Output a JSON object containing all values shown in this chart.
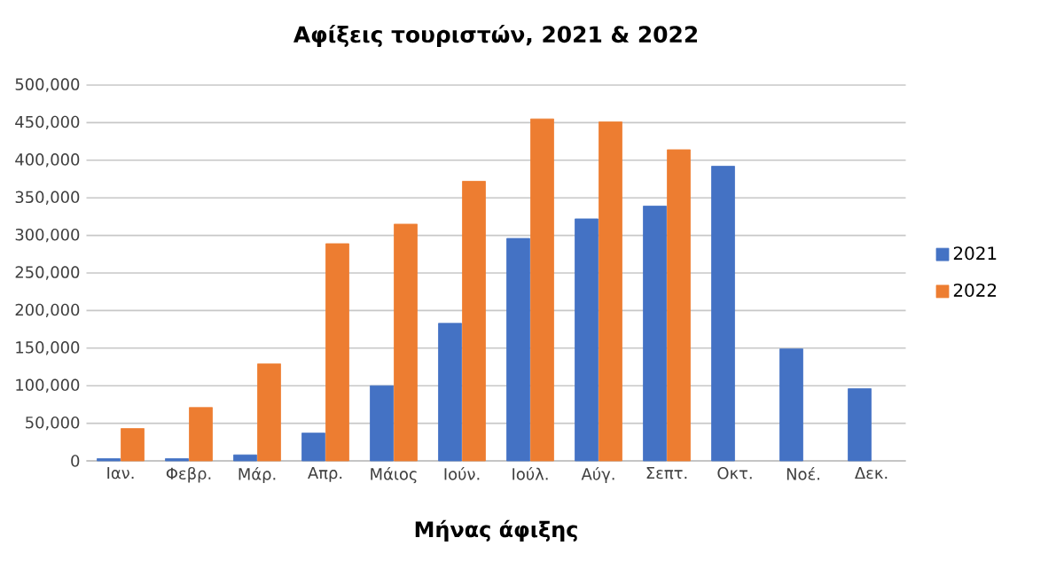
{
  "chart_data": {
    "type": "bar",
    "title": "Αφίξεις τουριστών, 2021 & 2022",
    "xlabel": "Μήνας άφιξης",
    "categories": [
      "Ιαν.",
      "Φεβρ.",
      "Μάρ.",
      "Απρ.",
      "Μάιος",
      "Ιούν.",
      "Ιούλ.",
      "Αύγ.",
      "Σεπτ.",
      "Οκτ.",
      "Νοέ.",
      "Δεκ."
    ],
    "series": [
      {
        "name": "2021",
        "color": "#4472c4",
        "values": [
          3000,
          3000,
          8000,
          37000,
          100000,
          183000,
          296000,
          322000,
          339000,
          392000,
          149000,
          96000
        ]
      },
      {
        "name": "2022",
        "color": "#ed7d31",
        "values": [
          43000,
          71000,
          129000,
          289000,
          315000,
          372000,
          455000,
          451000,
          414000,
          null,
          null,
          null
        ]
      }
    ],
    "ylim": [
      0,
      500000
    ],
    "yticks": [
      0,
      {
        "value": 50000,
        "label": "50,000"
      },
      {
        "value": 100000,
        "label": "100,000"
      },
      {
        "value": 150000,
        "label": "150,000"
      },
      {
        "value": 200000,
        "label": "200,000"
      },
      {
        "value": 250000,
        "label": "250,000"
      },
      {
        "value": 300000,
        "label": "300,000"
      },
      {
        "value": 350000,
        "label": "350,000"
      },
      {
        "value": 400000,
        "label": "400,000"
      },
      {
        "value": 450000,
        "label": "450,000"
      },
      {
        "value": 500000,
        "label": "500,000"
      }
    ],
    "grid": "y",
    "legend": "right"
  }
}
